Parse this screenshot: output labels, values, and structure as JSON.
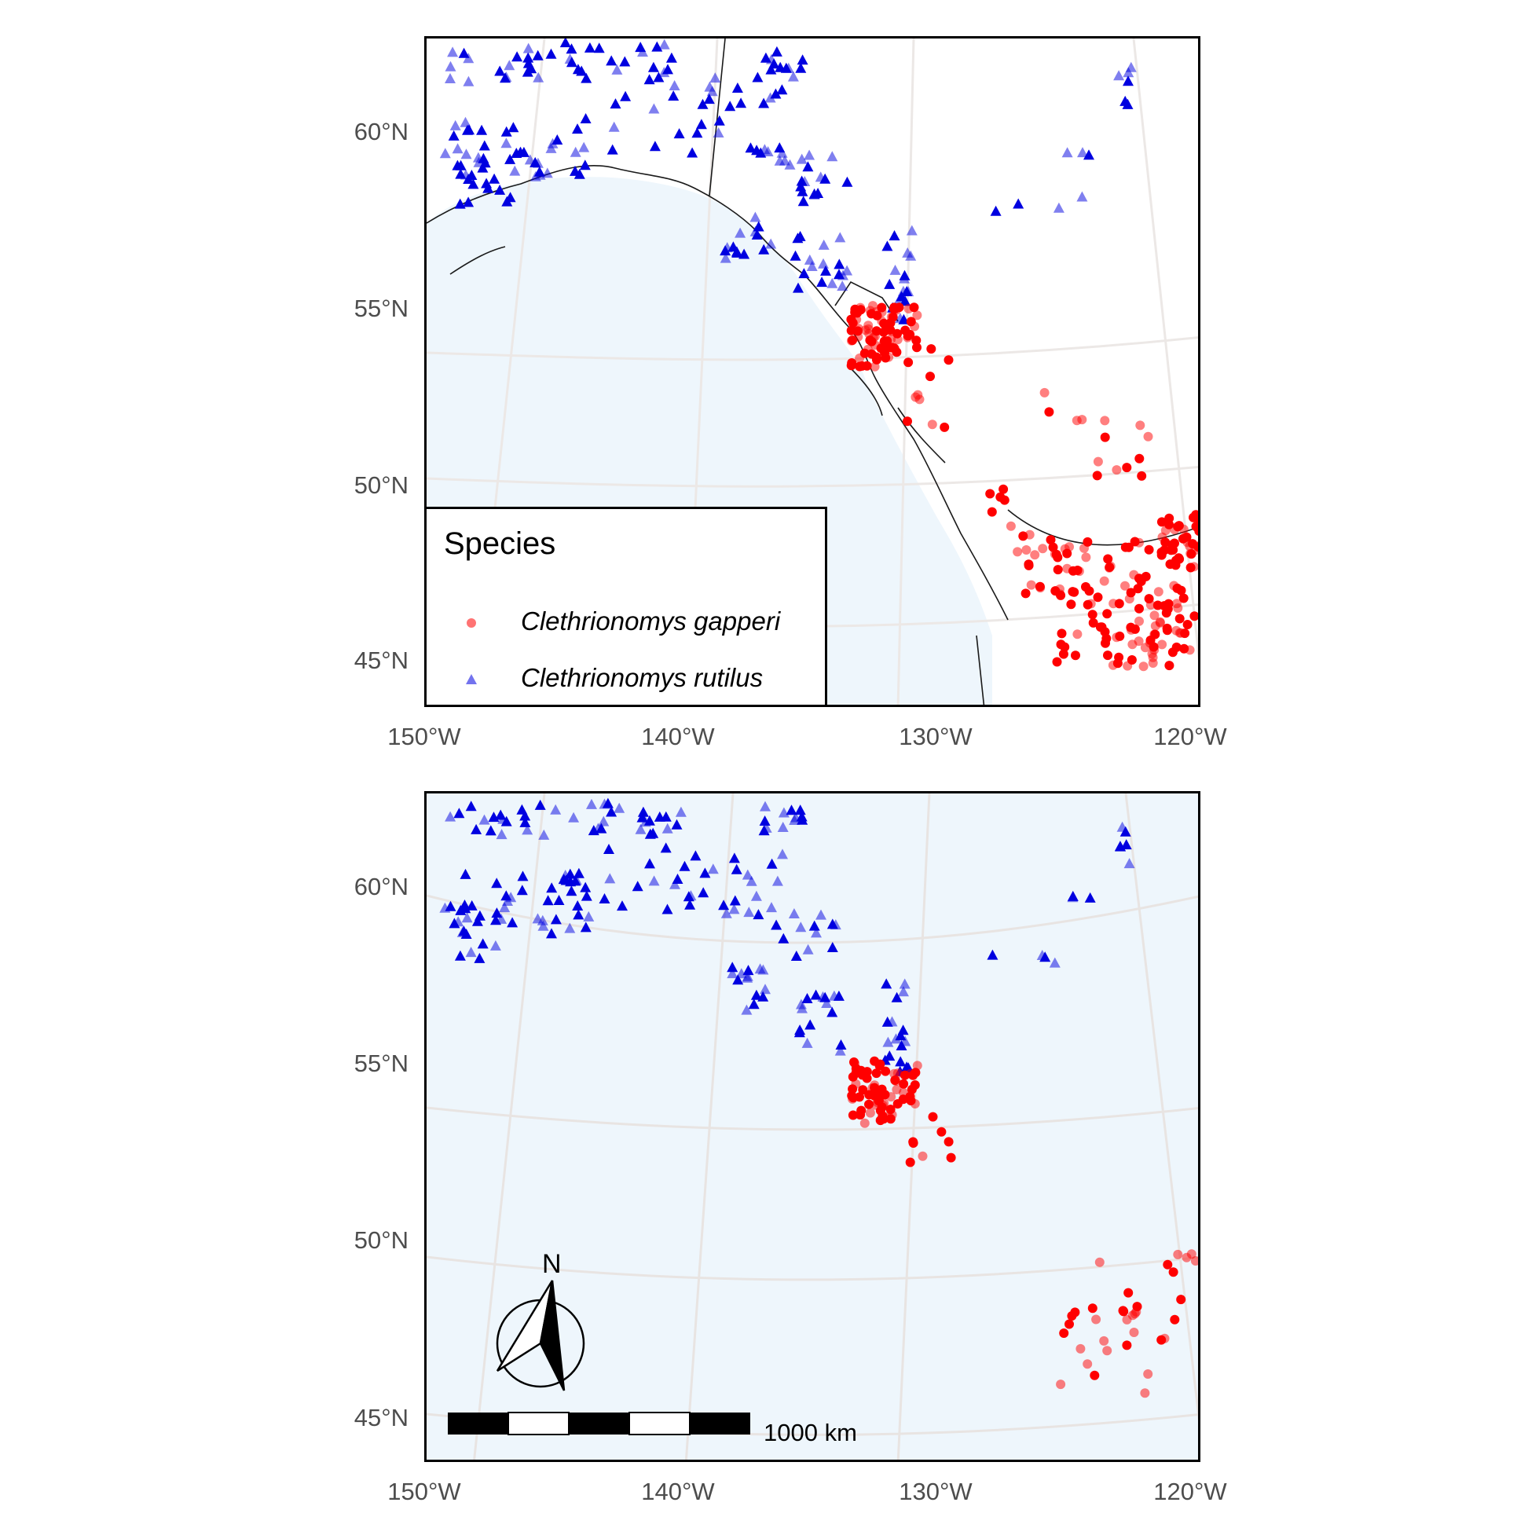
{
  "map": {
    "y_tick_labels": [
      "60°N",
      "55°N",
      "50°N",
      "45°N"
    ],
    "x_tick_labels": [
      "150°W",
      "140°W",
      "130°W",
      "120°W"
    ],
    "colors": {
      "ocean": "#eef6fc",
      "land": "#ffffff",
      "graticule": "#ece8e6",
      "coast": "#1a1a1a",
      "gapperi": "#ff0000",
      "rutilus": "#0000e0"
    },
    "legend": {
      "title": "Species",
      "items": [
        {
          "label": "Clethrionomys gapperi",
          "symbol": "circle",
          "color": "#ff0000"
        },
        {
          "label": "Clethrionomys rutilus",
          "symbol": "triangle",
          "color": "#0000e0"
        }
      ]
    },
    "scale_bar": {
      "label": "1000 km"
    },
    "north_arrow": {
      "label": "N"
    }
  }
}
